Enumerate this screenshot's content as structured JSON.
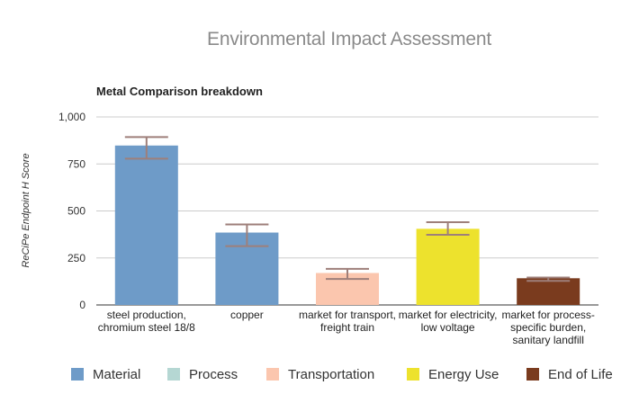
{
  "chart_data": {
    "type": "bar",
    "title": "Environmental Impact Assessment",
    "subtitle": "Metal Comparison breakdown",
    "ylabel": "ReCiPe Endpoint H Score",
    "xlabel": "",
    "ylim": [
      0,
      1000
    ],
    "yticks": [
      0,
      250,
      500,
      750,
      1000
    ],
    "ytick_labels": [
      "0",
      "250",
      "500",
      "750",
      "1,000"
    ],
    "grid": true,
    "legend_position": "bottom",
    "categories": [
      "steel production, chromium steel 18/8",
      "copper",
      "market for transport, freight train",
      "market for electricity, low voltage",
      "market for process-specific burden, sanitary landfill"
    ],
    "values": [
      848,
      385,
      170,
      405,
      142
    ],
    "error_low": [
      778,
      313,
      138,
      373,
      128
    ],
    "error_high": [
      893,
      428,
      192,
      440,
      146
    ],
    "bar_colors": [
      "#6e9bc8",
      "#6e9bc8",
      "#fbc6ae",
      "#ede22d",
      "#7a3b1e"
    ],
    "error_bar_color": "#9e7f7a",
    "series": [
      {
        "name": "Material",
        "color": "#6e9bc8"
      },
      {
        "name": "Process",
        "color": "#b5d7d3"
      },
      {
        "name": "Transportation",
        "color": "#fbc6ae"
      },
      {
        "name": "Energy Use",
        "color": "#ede22d"
      },
      {
        "name": "End of Life",
        "color": "#7a3b1e"
      }
    ]
  }
}
